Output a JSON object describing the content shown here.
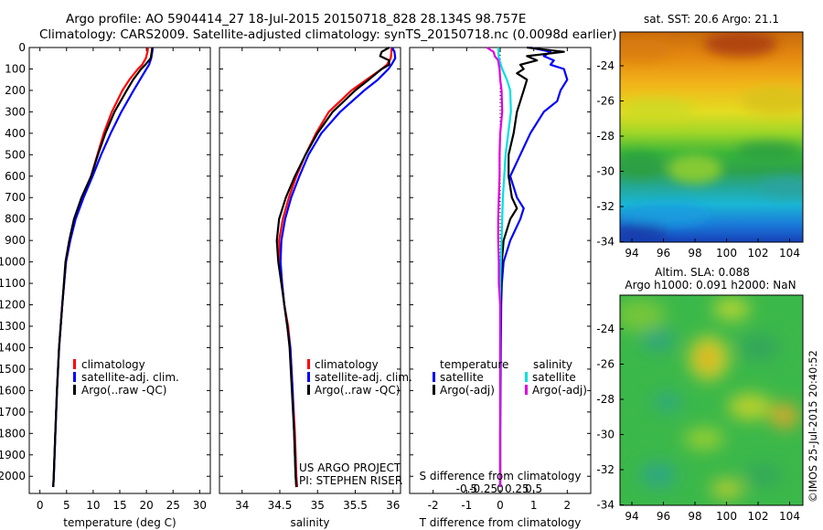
{
  "header": {
    "line1": "Argo profile: AO 5904414_27 18-Jul-2015 20150718_828 28.134S 98.757E",
    "line2": "Climatology: CARS2009. Satellite-adjusted climatology: synTS_20150718.nc (0.0098d earlier)"
  },
  "maps": {
    "sst_title": "sat. SST: 20.6 Argo: 21.1",
    "sla_title_1": "Altim. SLA: 0.088",
    "sla_title_2": "Argo h1000: 0.091 h2000: NaN",
    "stamp": "©IMOS 25-Jul-2015 20:40:52",
    "x_ticks": [
      "94",
      "96",
      "98",
      "100",
      "102",
      "104"
    ],
    "y_ticks": [
      "-24",
      "-26",
      "-28",
      "-30",
      "-32",
      "-34"
    ]
  },
  "credits": {
    "line1": "US ARGO PROJECT",
    "line2": "PI: STEPHEN RISER"
  },
  "colors": {
    "climatology": "#ff0000",
    "satellite": "#0000ff",
    "argo": "#000000",
    "salinity_satellite": "#00e0e0",
    "salinity_argo": "#e000e0"
  },
  "chart_data": [
    {
      "type": "line",
      "xlabel": "temperature (deg C)",
      "ylabel": "",
      "xlim": [
        -2,
        32
      ],
      "ylim": [
        2080,
        0
      ],
      "x_ticks": [
        0,
        5,
        10,
        15,
        20,
        25,
        30
      ],
      "y_ticks": [
        0,
        100,
        200,
        300,
        400,
        500,
        600,
        700,
        800,
        900,
        1000,
        1100,
        1200,
        1300,
        1400,
        1500,
        1600,
        1700,
        1800,
        1900,
        2000
      ],
      "legend": [
        "climatology",
        "satellite-adj. clim.",
        "Argo(..raw -QC)"
      ],
      "series": [
        {
          "name": "climatology",
          "color": "#ff0000",
          "depth": [
            0,
            20,
            50,
            80,
            100,
            150,
            200,
            300,
            400,
            500,
            600,
            700,
            800,
            900,
            1000,
            1200,
            1400,
            1600,
            1800,
            2000,
            2050
          ],
          "values": [
            20.3,
            20.2,
            19.9,
            19.2,
            18.4,
            16.8,
            15.5,
            13.5,
            12.0,
            10.8,
            9.6,
            8.0,
            6.6,
            5.7,
            4.9,
            4.2,
            3.6,
            3.2,
            2.9,
            2.6,
            2.5
          ]
        },
        {
          "name": "satellite-adj. clim.",
          "color": "#0000ff",
          "depth": [
            0,
            20,
            50,
            80,
            100,
            150,
            200,
            300,
            400,
            500,
            600,
            700,
            800,
            900,
            1000,
            1200,
            1400,
            1600,
            1800,
            2000,
            2050
          ],
          "values": [
            21.2,
            21.1,
            20.9,
            20.5,
            20.0,
            18.8,
            17.6,
            15.3,
            13.3,
            11.5,
            9.9,
            8.2,
            6.7,
            5.7,
            4.9,
            4.2,
            3.6,
            3.2,
            2.9,
            2.6,
            2.5
          ]
        },
        {
          "name": "Argo(..raw -QC)",
          "color": "#000000",
          "depth": [
            0,
            20,
            50,
            80,
            100,
            150,
            200,
            300,
            400,
            500,
            600,
            700,
            800,
            900,
            1000,
            1200,
            1400,
            1600,
            1800,
            2000,
            2050
          ],
          "values": [
            21.1,
            21.0,
            20.8,
            19.8,
            19.0,
            17.5,
            16.3,
            14.0,
            12.3,
            10.9,
            9.6,
            7.8,
            6.4,
            5.5,
            4.8,
            4.2,
            3.6,
            3.2,
            2.9,
            2.6,
            2.5
          ]
        }
      ]
    },
    {
      "type": "line",
      "xlabel": "salinity",
      "xlim": [
        33.7,
        36.1
      ],
      "ylim": [
        2080,
        0
      ],
      "x_ticks": [
        34,
        34.5,
        35,
        35.5,
        36
      ],
      "x_tick_labels": [
        "34",
        "34.5",
        "35",
        "35.5",
        "36"
      ],
      "legend": [
        "climatology",
        "satellite-adj. clim.",
        "Argo(..raw -QC)"
      ],
      "series": [
        {
          "name": "climatology",
          "color": "#ff0000",
          "depth": [
            0,
            20,
            50,
            80,
            100,
            150,
            200,
            300,
            400,
            500,
            600,
            700,
            800,
            900,
            1000,
            1100,
            1200,
            1300,
            1400,
            1600,
            1800,
            2000,
            2050
          ],
          "values": [
            35.98,
            35.98,
            35.97,
            35.92,
            35.85,
            35.65,
            35.45,
            35.15,
            34.98,
            34.84,
            34.72,
            34.62,
            34.54,
            34.49,
            34.5,
            34.53,
            34.56,
            34.61,
            34.64,
            34.67,
            34.7,
            34.72,
            34.73
          ]
        },
        {
          "name": "satellite-adj. clim.",
          "color": "#0000ff",
          "depth": [
            0,
            20,
            50,
            80,
            100,
            150,
            200,
            300,
            400,
            500,
            600,
            700,
            800,
            900,
            1000,
            1100,
            1200,
            1300,
            1400,
            1600,
            1800,
            2000,
            2050
          ],
          "values": [
            35.99,
            36.02,
            36.03,
            35.98,
            35.94,
            35.8,
            35.62,
            35.3,
            35.05,
            34.88,
            34.76,
            34.65,
            34.57,
            34.52,
            34.51,
            34.53,
            34.56,
            34.6,
            34.64,
            34.67,
            34.69,
            34.71,
            34.72
          ]
        },
        {
          "name": "Argo(..raw -QC)",
          "color": "#000000",
          "depth": [
            0,
            20,
            40,
            60,
            80,
            100,
            150,
            200,
            300,
            400,
            500,
            600,
            700,
            800,
            900,
            1000,
            1100,
            1200,
            1300,
            1400,
            1600,
            1800,
            2000,
            2050
          ],
          "values": [
            35.95,
            35.85,
            35.83,
            35.95,
            35.95,
            35.85,
            35.68,
            35.5,
            35.2,
            35.0,
            34.84,
            34.7,
            34.58,
            34.49,
            34.46,
            34.48,
            34.52,
            34.56,
            34.6,
            34.63,
            34.66,
            34.69,
            34.71,
            34.72
          ]
        }
      ]
    },
    {
      "type": "line",
      "xlabel": "T difference from climatology",
      "x2label": "S difference from climatology",
      "xlim": [
        -2.7,
        2.7
      ],
      "ylim": [
        2080,
        0
      ],
      "x_ticks": [
        -2,
        -1,
        0,
        1,
        2
      ],
      "x2_ticks": [
        -0.5,
        -0.25,
        0,
        0.25,
        0.5
      ],
      "x2_tick_labels": [
        "-0.5",
        "-0.25",
        "0",
        "0.25",
        "0.5"
      ],
      "legend_temperature": {
        "title": "temperature",
        "items": [
          "satellite",
          "Argo(-adj)"
        ]
      },
      "legend_salinity": {
        "title": "salinity",
        "items": [
          "satellite",
          "Argo(-adj)"
        ]
      },
      "series": [
        {
          "name": "temperature satellite",
          "color": "#0000ff",
          "depth": [
            0,
            20,
            40,
            60,
            80,
            100,
            150,
            200,
            250,
            300,
            400,
            500,
            600,
            700,
            750,
            800,
            900,
            1000,
            1100,
            1200,
            1400,
            1600,
            1800,
            2000,
            2050
          ],
          "values": [
            0.9,
            1.5,
            1.3,
            1.6,
            1.5,
            1.9,
            2.0,
            1.8,
            1.7,
            1.3,
            0.9,
            0.6,
            0.3,
            0.5,
            0.7,
            0.6,
            0.3,
            0.1,
            0.05,
            0.03,
            0.02,
            0.01,
            0.0,
            0.0,
            0.0
          ]
        },
        {
          "name": "temperature Argo(-adj)",
          "color": "#000000",
          "depth": [
            0,
            20,
            40,
            60,
            80,
            100,
            120,
            150,
            200,
            250,
            300,
            400,
            500,
            600,
            700,
            750,
            800,
            900,
            1000,
            1100,
            1200,
            1400,
            1600,
            1800,
            2000,
            2050
          ],
          "values": [
            0.8,
            1.9,
            0.8,
            1.1,
            0.6,
            0.7,
            0.5,
            0.8,
            0.7,
            0.6,
            0.5,
            0.4,
            0.25,
            0.25,
            0.35,
            0.5,
            0.3,
            0.1,
            0.05,
            0.02,
            0.01,
            0.0,
            0.0,
            0.0,
            0.0,
            0.0
          ]
        },
        {
          "name": "salinity satellite",
          "color": "#00e0e0",
          "depth": [
            0,
            50,
            100,
            150,
            200,
            300,
            400,
            500,
            600,
            700,
            800,
            900,
            1000,
            1100,
            1200,
            1300,
            1400,
            1600,
            1800,
            2000,
            2050
          ],
          "values": [
            -0.03,
            -0.02,
            0.03,
            0.1,
            0.15,
            0.16,
            0.12,
            0.08,
            0.06,
            0.04,
            0.03,
            0.02,
            0.01,
            0.0,
            0.0,
            0.0,
            0.0,
            0.0,
            0.0,
            0.0,
            0.0
          ]
        },
        {
          "name": "salinity Argo(-adj)",
          "color": "#e000e0",
          "depth": [
            0,
            20,
            40,
            60,
            80,
            100,
            150,
            200,
            300,
            400,
            500,
            600,
            700,
            800,
            900,
            1000,
            1100,
            1200,
            1300,
            1400,
            1600,
            1800,
            2000,
            2050
          ],
          "values": [
            -0.2,
            -0.1,
            -0.08,
            -0.03,
            -0.02,
            -0.01,
            0.0,
            0.02,
            0.03,
            0.0,
            -0.01,
            -0.01,
            -0.02,
            -0.03,
            -0.03,
            -0.02,
            -0.02,
            0.0,
            0.0,
            0.0,
            0.0,
            0.0,
            0.0,
            0.0
          ]
        }
      ]
    }
  ]
}
